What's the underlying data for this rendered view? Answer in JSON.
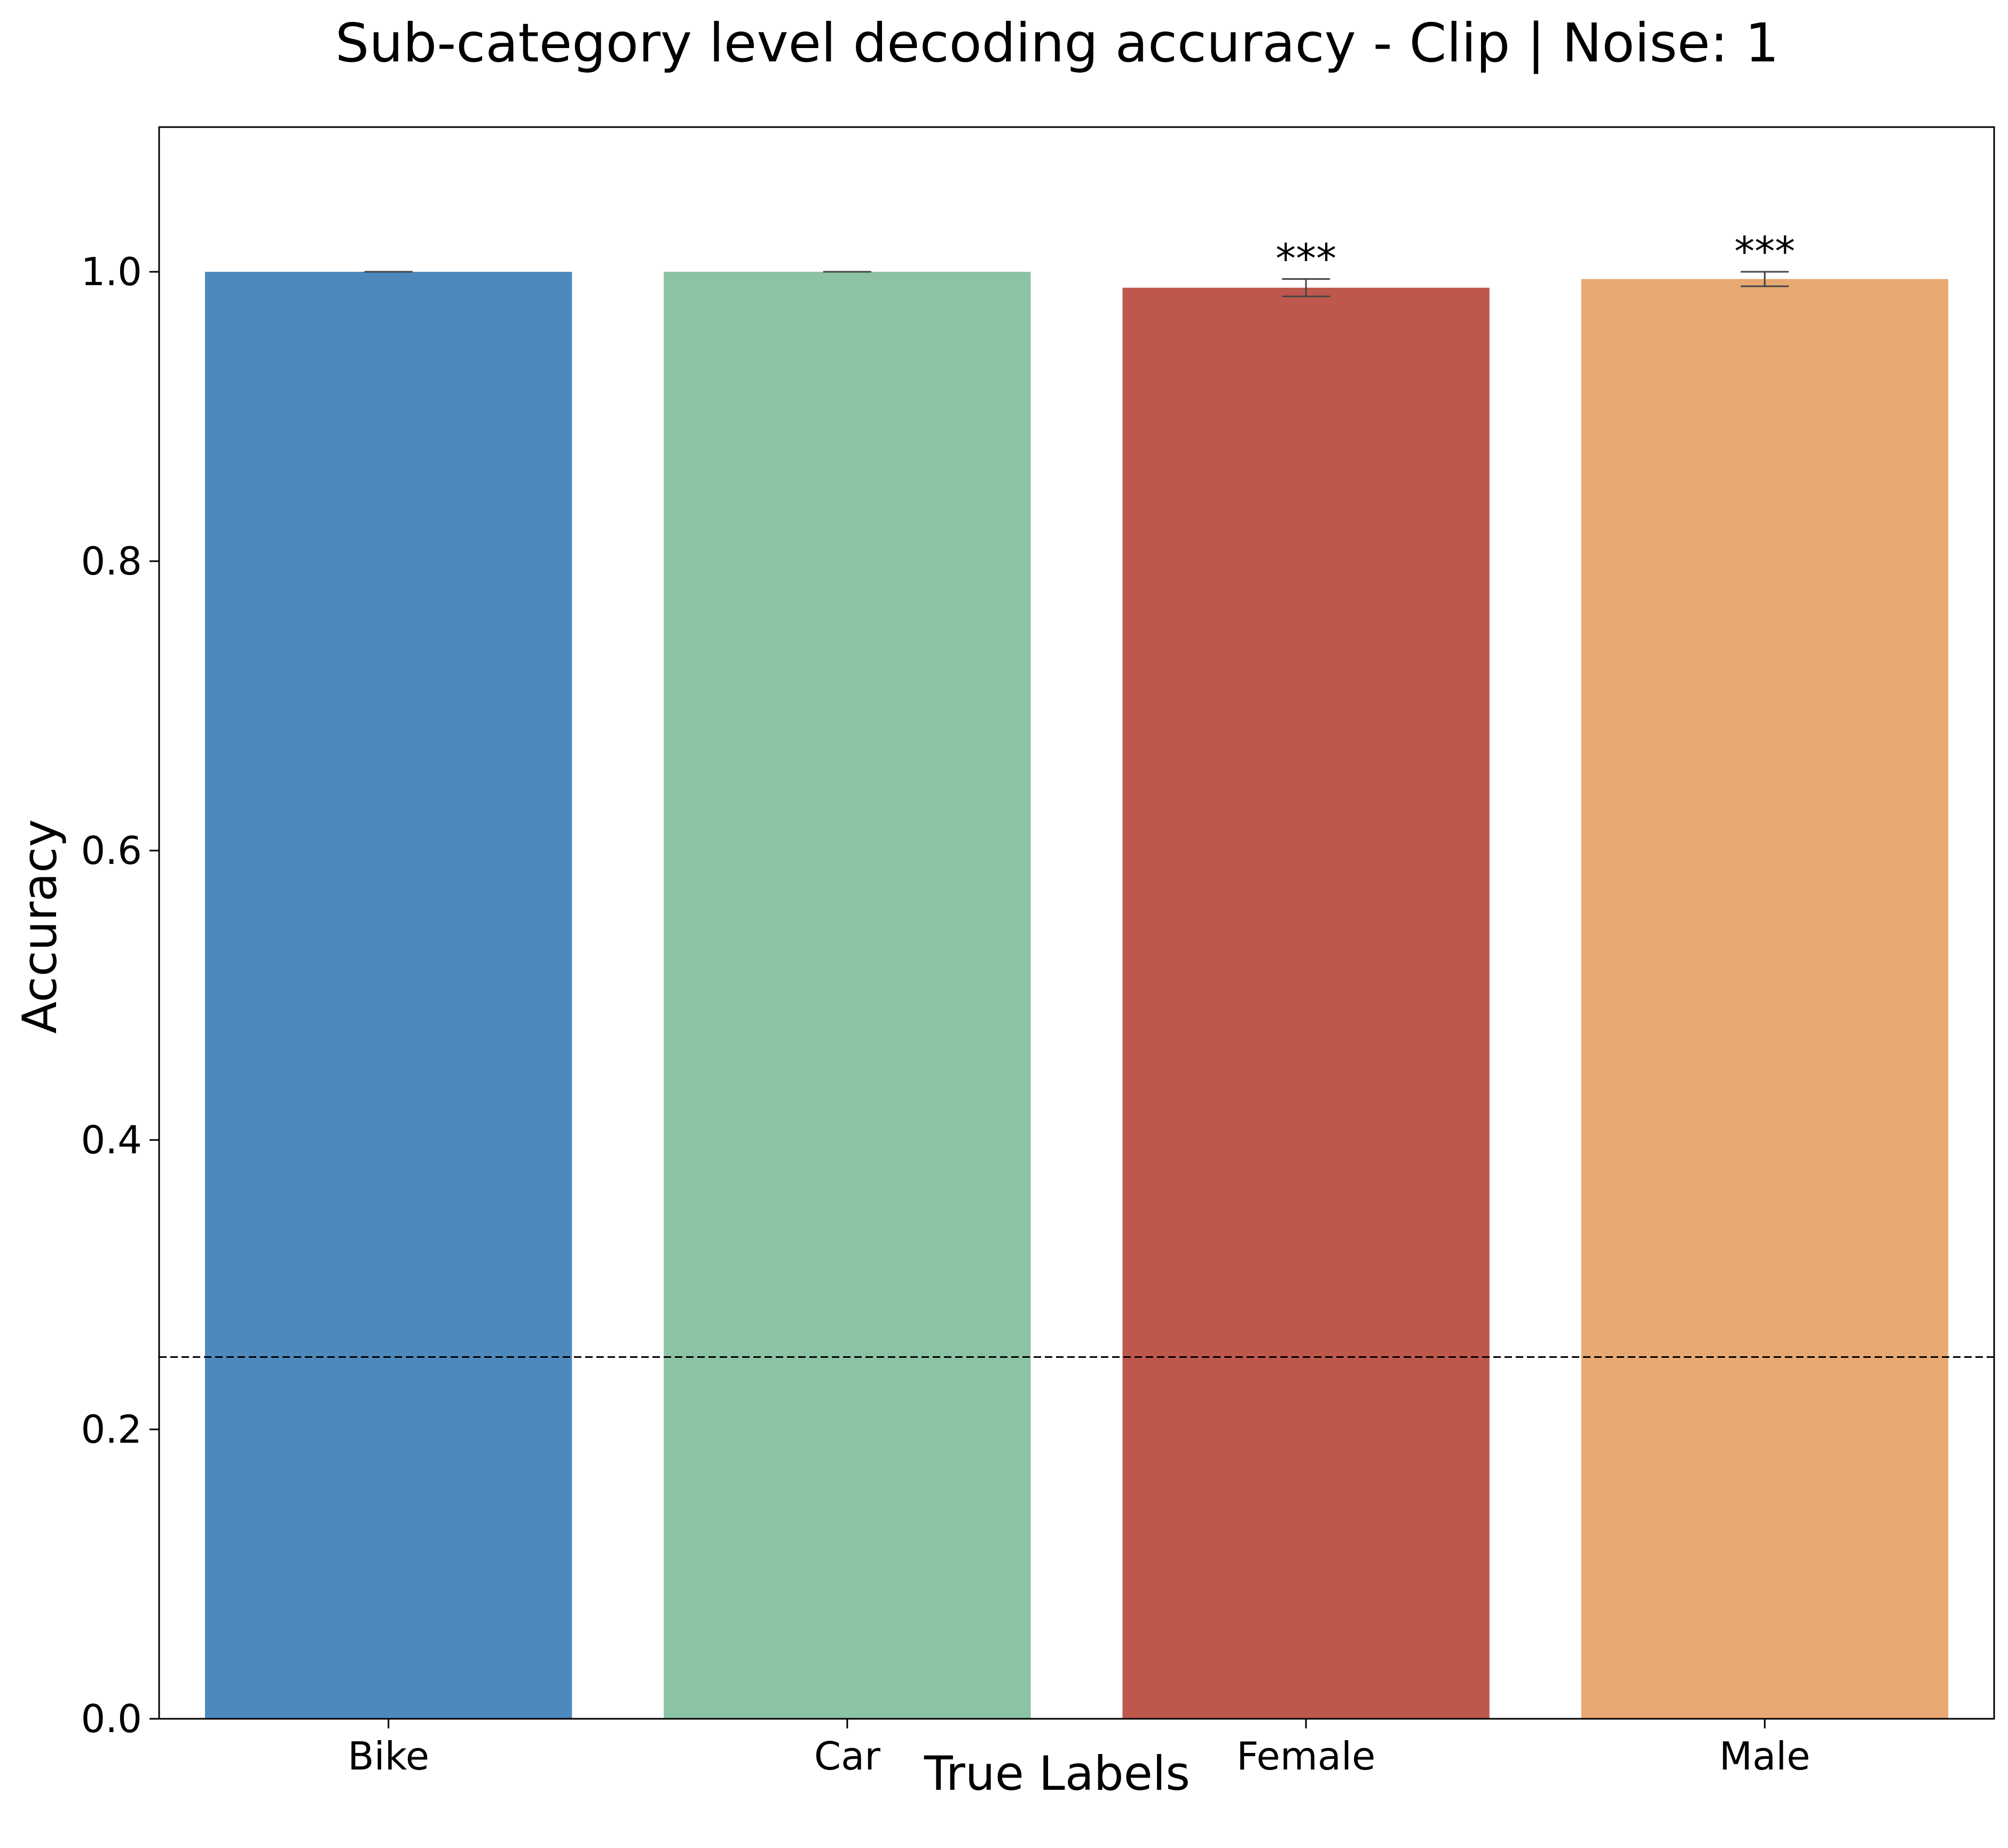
{
  "chart_data": {
    "type": "bar",
    "title": "Sub-category level decoding accuracy - Clip | Noise: 1",
    "xlabel": "True Labels",
    "ylabel": "Accuracy",
    "categories": [
      "Bike",
      "Car",
      "Female",
      "Male"
    ],
    "values": [
      1.0,
      1.0,
      0.989,
      0.995
    ],
    "error": [
      0.0,
      0.0,
      0.006,
      0.005
    ],
    "annotations": [
      "",
      "",
      "***",
      "***"
    ],
    "colors": [
      "#4e89bd",
      "#8cc3a4",
      "#bf584c",
      "#e8a972"
    ],
    "ylim": [
      0,
      1.1
    ],
    "yticks": [
      0.0,
      0.2,
      0.4,
      0.6,
      0.8,
      1.0
    ],
    "ytick_labels": [
      "0.0",
      "0.2",
      "0.4",
      "0.6",
      "0.8",
      "1.0"
    ],
    "reference_line": {
      "y": 0.25,
      "style": "dashed",
      "color": "#000000"
    },
    "grid": false,
    "legend": "none"
  }
}
